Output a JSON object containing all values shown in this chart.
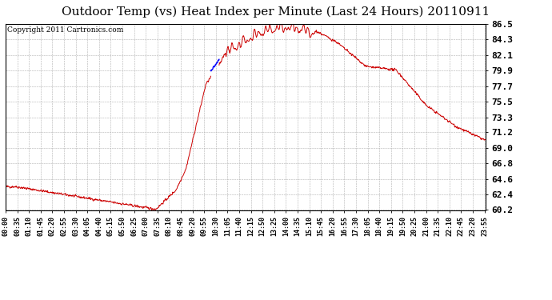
{
  "title": "Outdoor Temp (vs) Heat Index per Minute (Last 24 Hours) 20110911",
  "copyright": "Copyright 2011 Cartronics.com",
  "ylim": [
    60.2,
    86.5
  ],
  "yticks": [
    60.2,
    62.4,
    64.6,
    66.8,
    69.0,
    71.2,
    73.3,
    75.5,
    77.7,
    79.9,
    82.1,
    84.3,
    86.5
  ],
  "bg_color": "#ffffff",
  "grid_color": "#b0b0b0",
  "line_color_red": "#cc0000",
  "line_color_blue": "#0000ff",
  "title_fontsize": 11,
  "copyright_fontsize": 6.5,
  "tick_fontsize": 6,
  "ytick_fontsize": 8,
  "num_minutes": 1440,
  "x_tick_interval": 35
}
